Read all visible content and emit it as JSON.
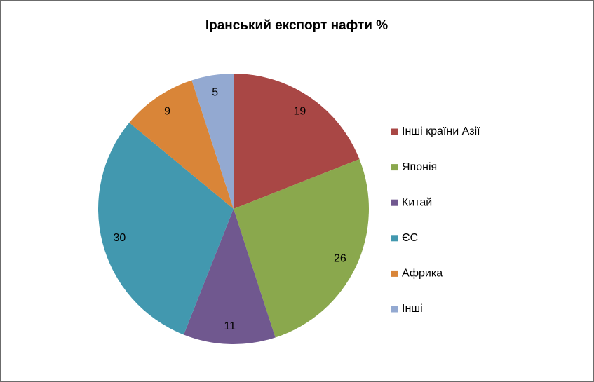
{
  "chart_data": {
    "type": "pie",
    "title": "Іранський експорт нафти %",
    "categories": [
      "Інші країни Азії",
      "Японія",
      "Китай",
      "ЄС",
      "Африка",
      "Інші"
    ],
    "values": [
      19,
      26,
      11,
      30,
      9,
      5
    ],
    "colors": [
      "#a94745",
      "#8aa84d",
      "#70588f",
      "#4298af",
      "#d98538",
      "#93a9d1"
    ],
    "legend": "right"
  }
}
